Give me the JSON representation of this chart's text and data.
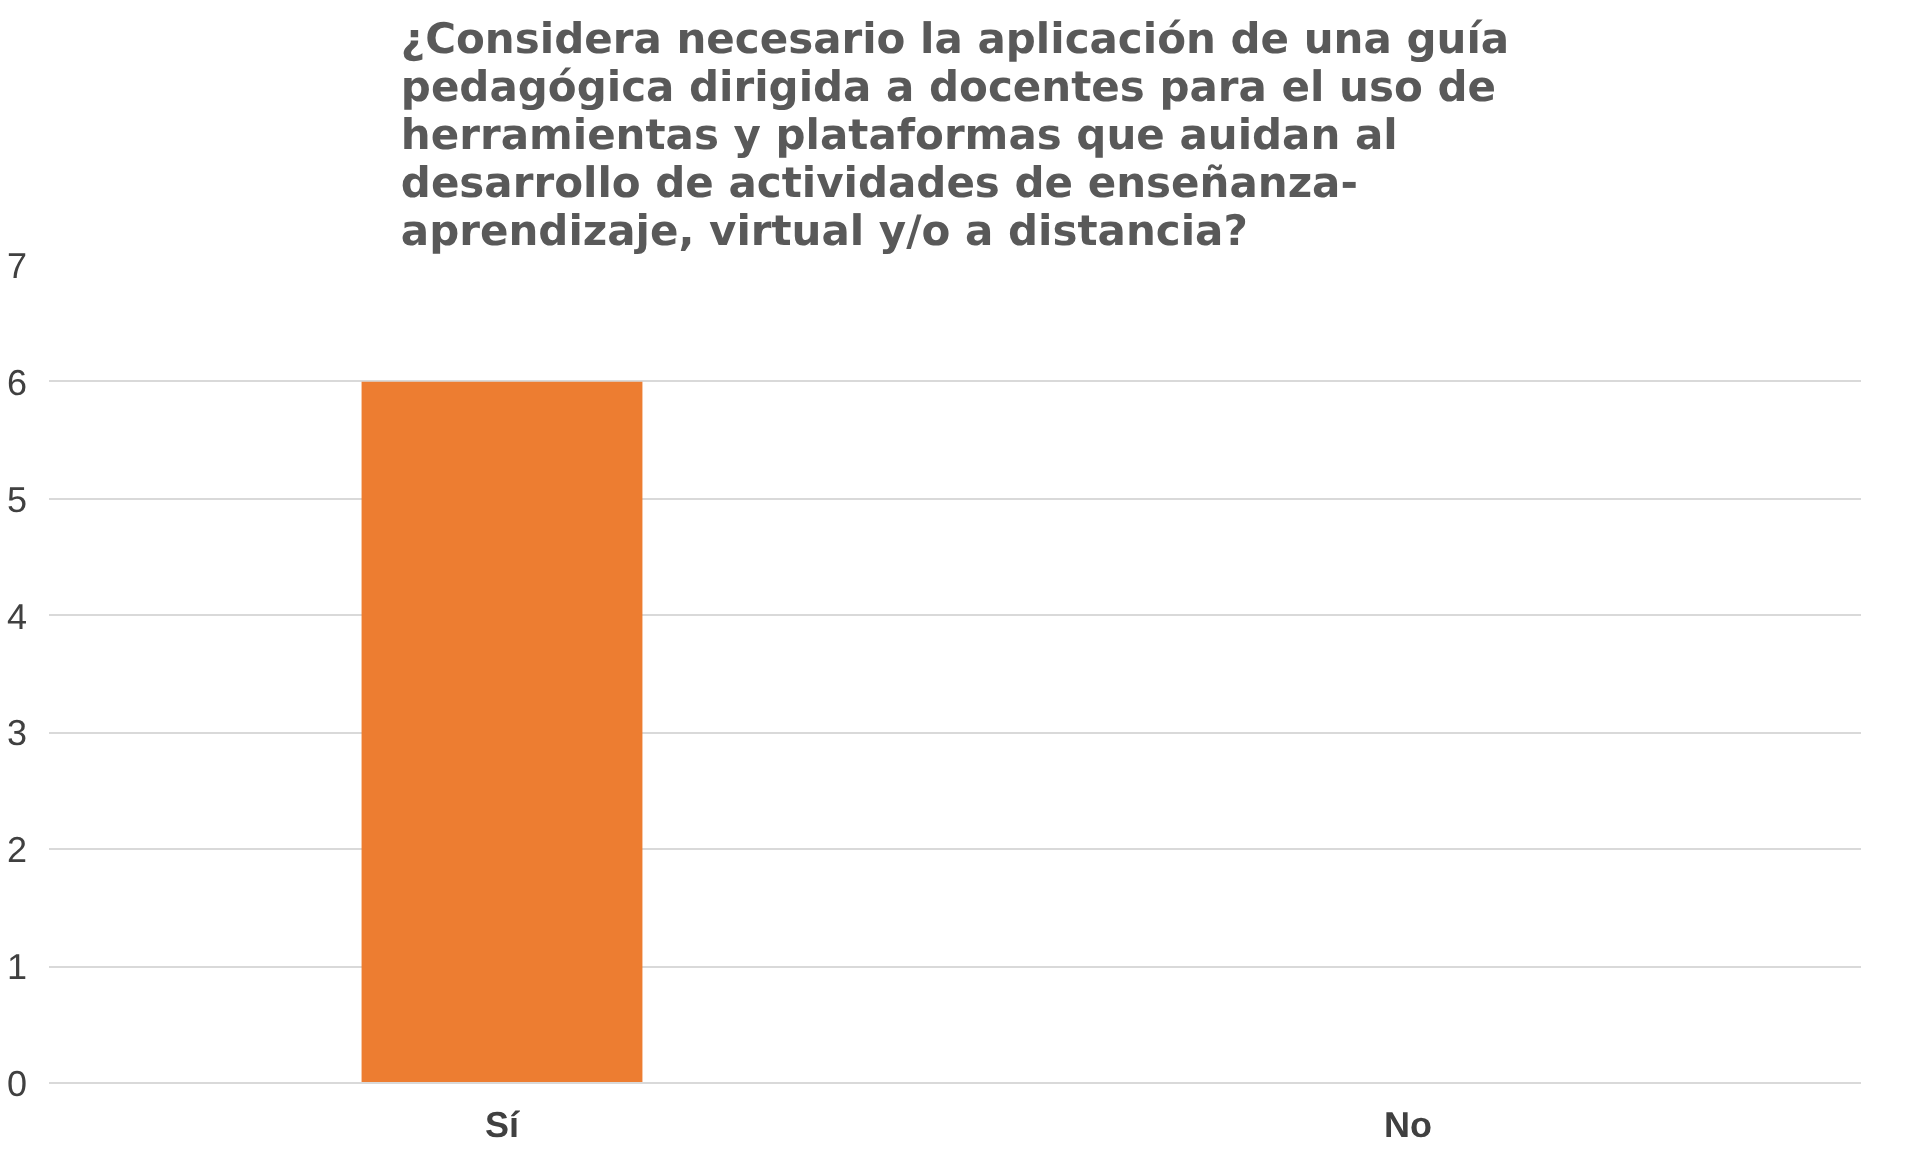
{
  "chart_data": {
    "type": "bar",
    "title": "¿Considera necesario la aplicación de una guía pedagógica dirigida a docentes para el uso de herramientas y plataformas que auidan al desarrollo de actividades de enseñanza-aprendizaje, virtual y/o a distancia?",
    "categories": [
      "Sí",
      "No"
    ],
    "values": [
      6,
      0
    ],
    "color": "#ed7d31",
    "ylim": [
      0,
      7
    ],
    "yticks": [
      0,
      1,
      2,
      3,
      4,
      5,
      6,
      7
    ],
    "grid": "y"
  }
}
